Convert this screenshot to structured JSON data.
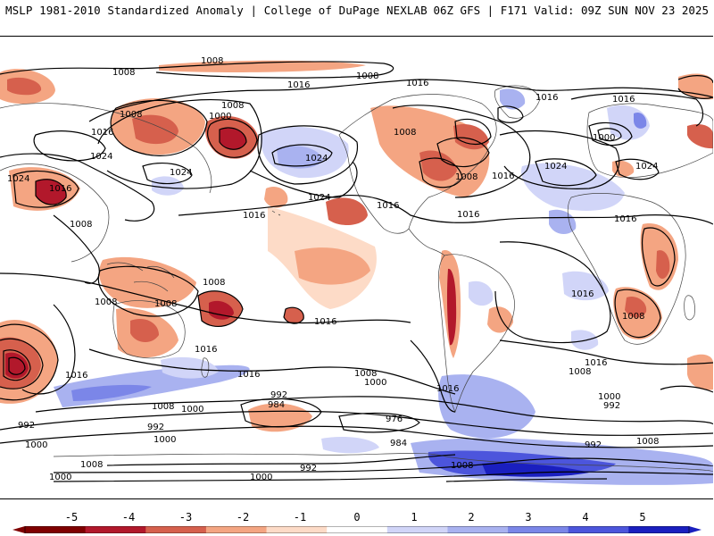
{
  "header": {
    "left_title": "MSLP 1981-2010 Standardized Anomaly | College of DuPage NEXLAB",
    "right_title": "06Z GFS | F171 Valid: 09Z SUN NOV 23 2025"
  },
  "map": {
    "contour_labels": {
      "l1008_a": "1008",
      "l1008_b": "1008",
      "l1008_c": "1008",
      "l1008_d": "1008",
      "l1008_e": "1008",
      "l1008_f": "1008",
      "l1008_g": "1008",
      "l1008_h": "1008",
      "l1008_i": "1008",
      "l1008_j": "1008",
      "l1008_k": "1008",
      "l1008_l": "1008",
      "l1008_m": "1008",
      "l1008_n": "1008",
      "l1008_o": "1008",
      "l1008_p": "1008",
      "l1008_q": "1008",
      "l1008_r": "1008",
      "l1016_a": "1016",
      "l1016_b": "1016",
      "l1016_c": "1016",
      "l1016_d": "1016",
      "l1016_e": "1016",
      "l1016_f": "1016",
      "l1016_g": "1016",
      "l1016_h": "1016",
      "l1016_i": "1016",
      "l1016_j": "1016",
      "l1016_k": "1016",
      "l1016_l": "1016",
      "l1016_m": "1016",
      "l1016_n": "1016",
      "l1016_o": "1016",
      "l1016_p": "1016",
      "l1016_q": "1016",
      "l1016_r": "1016",
      "l1024_a": "1024",
      "l1024_b": "1024",
      "l1024_c": "1024",
      "l1024_d": "1024",
      "l1024_e": "1024",
      "l1024_f": "1024",
      "l1024_g": "1024",
      "l1000_a": "1000",
      "l1000_b": "1000",
      "l1000_c": "1000",
      "l1000_d": "1000",
      "l1000_e": "1000",
      "l1000_f": "1000",
      "l1000_g": "1000",
      "l1000_h": "1000",
      "l1000_i": "1000",
      "l992_a": "992",
      "l992_b": "992",
      "l992_c": "992",
      "l992_d": "992",
      "l992_e": "992",
      "l992_f": "992",
      "l984_a": "984",
      "l984_b": "984",
      "l976_a": "976"
    }
  },
  "colorbar": {
    "ticks": [
      "-5",
      "-4",
      "-3",
      "-2",
      "-1",
      "0",
      "1",
      "2",
      "3",
      "4",
      "5"
    ],
    "colors": [
      "#7f0000",
      "#b2182b",
      "#d6604d",
      "#f4a582",
      "#fddbc7",
      "#ffffff",
      "#d1d5f8",
      "#a9b2f0",
      "#7b86e8",
      "#4c55dc",
      "#1a1fbf"
    ]
  }
}
